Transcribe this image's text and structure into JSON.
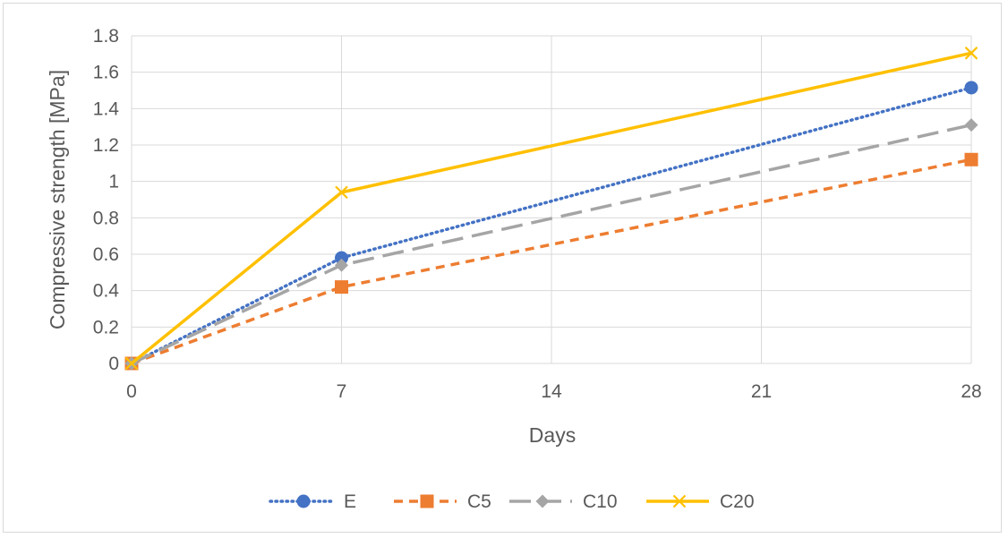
{
  "chart_data": {
    "type": "line",
    "title": "",
    "xlabel": "Days",
    "ylabel": "Compressive strength [MPa]",
    "x": [
      0,
      7,
      28
    ],
    "xticks": [
      "0",
      "7",
      "14",
      "21",
      "28"
    ],
    "yticks": [
      "0",
      "0.2",
      "0.4",
      "0.6",
      "0.8",
      "1",
      "1.2",
      "1.4",
      "1.6",
      "1.8"
    ],
    "xlim": [
      0,
      28
    ],
    "ylim": [
      0,
      1.8
    ],
    "grid": true,
    "legend_position": "bottom",
    "series": [
      {
        "name": "E",
        "values": [
          0,
          0.58,
          1.515
        ],
        "color": "#4472C4",
        "line_style": "dotted",
        "marker": "circle"
      },
      {
        "name": "C5",
        "values": [
          0,
          0.42,
          1.12
        ],
        "color": "#ED7D31",
        "line_style": "dashed",
        "marker": "square"
      },
      {
        "name": "C10",
        "values": [
          0,
          0.54,
          1.31
        ],
        "color": "#A5A5A5",
        "line_style": "long-dash",
        "marker": "diamond"
      },
      {
        "name": "C20",
        "values": [
          0,
          0.94,
          1.705
        ],
        "color": "#FFC000",
        "line_style": "solid",
        "marker": "x"
      }
    ]
  }
}
